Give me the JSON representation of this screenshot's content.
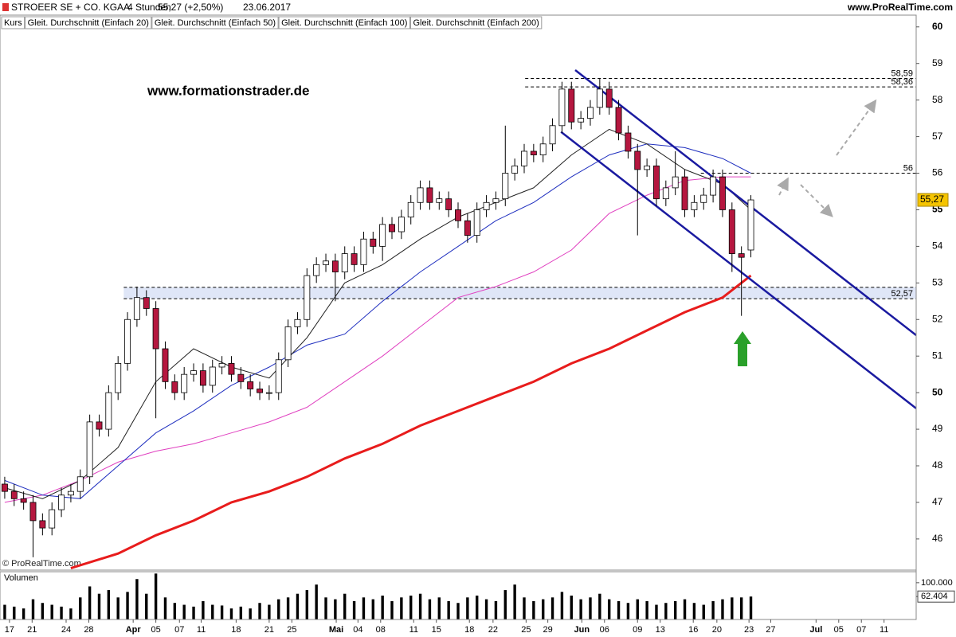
{
  "chart_data": {
    "type": "candlestick",
    "title": "STROEER SE + CO. KGAA",
    "subtitle": "4 Stunden",
    "quote": "55,27 (+2,50%)",
    "date": "23.06.2017",
    "source": "www.ProRealTime.com",
    "watermark": "www.formationstrader.de",
    "copyright": "© ProRealTime.com",
    "price_name": "Kurs",
    "up_color": "#ffffff",
    "down_color": "#b5173f",
    "open": [
      47.5,
      47.3,
      47.1,
      47.0,
      46.5,
      46.3,
      46.8,
      47.2,
      47.3,
      47.7,
      49.2,
      49.0,
      50.0,
      50.8,
      52.0,
      52.6,
      52.3,
      51.2,
      50.3,
      50.0,
      50.5,
      50.6,
      50.2,
      50.7,
      50.8,
      50.5,
      50.3,
      50.1,
      50.0,
      50.0,
      50.9,
      51.8,
      52.0,
      53.2,
      53.5,
      53.6,
      53.3,
      53.8,
      53.5,
      54.2,
      54.0,
      54.6,
      54.4,
      54.8,
      55.2,
      55.6,
      55.2,
      55.3,
      55.0,
      54.7,
      54.3,
      55.0,
      55.2,
      55.3,
      56.0,
      56.2,
      56.6,
      56.5,
      56.8,
      57.3,
      58.3,
      57.4,
      57.5,
      57.8,
      58.3,
      57.8,
      57.1,
      56.6,
      56.1,
      56.2,
      55.3,
      55.6,
      55.9,
      55.0,
      55.2,
      55.4,
      55.9,
      55.0,
      53.8,
      53.9
    ],
    "high": [
      47.7,
      47.5,
      47.3,
      47.2,
      46.7,
      47.0,
      47.4,
      47.5,
      47.9,
      49.4,
      49.4,
      50.2,
      51.0,
      52.2,
      52.9,
      52.8,
      52.5,
      51.4,
      50.5,
      50.7,
      50.8,
      50.8,
      50.9,
      51.0,
      51.0,
      50.7,
      50.5,
      50.3,
      50.2,
      51.1,
      52.0,
      52.2,
      53.4,
      53.7,
      53.8,
      53.8,
      54.0,
      54.0,
      54.4,
      54.4,
      54.8,
      54.8,
      55.0,
      55.4,
      55.8,
      55.8,
      55.5,
      55.5,
      55.2,
      54.9,
      55.2,
      55.4,
      55.5,
      57.3,
      56.4,
      56.8,
      56.8,
      57.0,
      57.5,
      58.5,
      58.5,
      57.7,
      58.0,
      58.6,
      58.5,
      58.0,
      57.3,
      56.8,
      56.4,
      56.4,
      55.8,
      56.6,
      56.1,
      55.4,
      55.6,
      56.1,
      56.1,
      55.2,
      54.0,
      55.4
    ],
    "low": [
      47.1,
      46.9,
      46.8,
      45.5,
      46.1,
      46.1,
      46.6,
      47.0,
      47.1,
      47.5,
      48.8,
      48.8,
      49.8,
      50.6,
      51.8,
      52.1,
      49.3,
      50.1,
      49.8,
      49.8,
      50.3,
      50.0,
      50.0,
      50.5,
      50.3,
      50.1,
      49.9,
      49.8,
      49.8,
      49.8,
      50.7,
      51.6,
      51.8,
      53.0,
      53.3,
      52.5,
      53.1,
      53.3,
      53.3,
      53.8,
      53.6,
      54.2,
      54.2,
      54.6,
      55.0,
      55.0,
      55.0,
      54.8,
      54.5,
      54.1,
      54.1,
      54.8,
      55.0,
      55.1,
      55.8,
      56.0,
      56.3,
      56.3,
      56.6,
      57.1,
      57.2,
      57.2,
      57.3,
      57.6,
      57.6,
      56.9,
      56.4,
      54.3,
      55.9,
      55.1,
      55.1,
      55.4,
      54.8,
      54.8,
      55.0,
      55.2,
      54.8,
      53.3,
      52.1,
      53.7
    ],
    "close": [
      47.3,
      47.1,
      47.0,
      46.5,
      46.3,
      46.8,
      47.2,
      47.3,
      47.7,
      49.2,
      49.0,
      50.0,
      50.8,
      52.0,
      52.6,
      52.3,
      51.2,
      50.3,
      50.0,
      50.5,
      50.6,
      50.2,
      50.7,
      50.8,
      50.5,
      50.3,
      50.1,
      50.0,
      50.0,
      50.9,
      51.8,
      52.0,
      53.2,
      53.5,
      53.6,
      53.3,
      53.8,
      53.5,
      54.2,
      54.0,
      54.6,
      54.4,
      54.8,
      55.2,
      55.6,
      55.2,
      55.3,
      55.0,
      54.7,
      54.3,
      55.0,
      55.2,
      55.3,
      56.0,
      56.2,
      56.6,
      56.5,
      56.8,
      57.3,
      58.3,
      57.4,
      57.5,
      57.8,
      58.3,
      57.8,
      57.1,
      56.6,
      56.1,
      56.2,
      55.3,
      55.6,
      55.9,
      55.0,
      55.2,
      55.4,
      55.9,
      55.0,
      53.8,
      53.7,
      55.27
    ],
    "last_value": {
      "value": 55.27,
      "label": "55,27"
    },
    "series": [
      {
        "name": "Gleit. Durchschnitt (Einfach 20)",
        "color": "#222222",
        "x": [
          0.5,
          4.5,
          8.5,
          12.5,
          16.5,
          20.5,
          24.5,
          28.5,
          32.5,
          36.5,
          40.5,
          44.5,
          48.5,
          52.5,
          56.5,
          60.5,
          64.5,
          68.5,
          72.5,
          76.5,
          79.5
        ],
        "values": [
          47.4,
          47.1,
          47.6,
          48.5,
          50.3,
          51.2,
          50.7,
          50.4,
          51.5,
          53.0,
          53.5,
          54.2,
          54.8,
          55.2,
          55.6,
          56.5,
          57.2,
          56.8,
          56.1,
          55.7,
          55.0
        ]
      },
      {
        "name": "Gleit. Durchschnitt (Einfach 50)",
        "color": "#1f2fbf",
        "x": [
          0.5,
          4.5,
          8.5,
          12.5,
          16.5,
          20.5,
          24.5,
          28.5,
          32.5,
          36.5,
          40.5,
          44.5,
          48.5,
          52.5,
          56.5,
          60.5,
          64.5,
          68.5,
          72.5,
          76.5,
          79.5
        ],
        "values": [
          47.6,
          47.2,
          47.1,
          48.0,
          48.9,
          49.5,
          50.2,
          50.7,
          51.3,
          51.6,
          52.5,
          53.3,
          54.0,
          54.7,
          55.2,
          55.9,
          56.5,
          56.8,
          56.7,
          56.4,
          56.0
        ]
      },
      {
        "name": "Gleit. Durchschnitt (Einfach 100)",
        "color": "#e040c0",
        "x": [
          0.5,
          4.5,
          8.5,
          12.5,
          16.5,
          20.5,
          24.5,
          28.5,
          32.5,
          36.5,
          40.5,
          44.5,
          48.5,
          52.5,
          56.5,
          60.5,
          64.5,
          68.5,
          72.5,
          76.5,
          79.5
        ],
        "values": [
          47.0,
          47.2,
          47.6,
          48.1,
          48.4,
          48.6,
          48.9,
          49.2,
          49.6,
          50.3,
          51.0,
          51.8,
          52.6,
          52.9,
          53.3,
          53.9,
          54.9,
          55.4,
          55.8,
          55.9,
          55.9
        ]
      },
      {
        "name": "Gleit. Durchschnitt (Einfach 200)",
        "color": "#e81c1c",
        "x": [
          7.5,
          12.5,
          16.5,
          20.5,
          24.5,
          28.5,
          32.5,
          36.5,
          40.5,
          44.5,
          48.5,
          52.5,
          56.5,
          60.5,
          64.5,
          68.5,
          72.5,
          76.5,
          79.5
        ],
        "values": [
          45.2,
          45.6,
          46.1,
          46.5,
          47.0,
          47.3,
          47.7,
          48.2,
          48.6,
          49.1,
          49.5,
          49.9,
          50.3,
          50.8,
          51.2,
          51.7,
          52.2,
          52.6,
          53.2
        ]
      }
    ],
    "levels": [
      {
        "value": 58.59,
        "label": "58,59",
        "x_from": 55.6
      },
      {
        "value": 58.36,
        "label": "58,36",
        "x_from": 55.6
      },
      {
        "value": 56,
        "label": "56",
        "x_from": 74.2
      },
      {
        "value": 52.57,
        "label": "52,57",
        "x_from": 13.1
      }
    ],
    "zone": {
      "from": 52.57,
      "to": 52.88,
      "x_from": 13.1,
      "color": "#dfe6f7"
    },
    "channel_color": "#1a1aa0",
    "channel": [
      {
        "x": [
          60.9,
          97
        ],
        "values": [
          58.82,
          51.57
        ]
      },
      {
        "x": [
          59.4,
          97
        ],
        "values": [
          57.13,
          49.57
        ]
      }
    ],
    "xlim": [
      0,
      97
    ],
    "xticks": [
      {
        "value": 1.0,
        "label": "17"
      },
      {
        "value": 3.4,
        "label": "21"
      },
      {
        "value": 7.0,
        "label": "24"
      },
      {
        "value": 9.4,
        "label": "28"
      },
      {
        "value": 14.1,
        "label": "Apr"
      },
      {
        "value": 16.5,
        "label": "05"
      },
      {
        "value": 19.0,
        "label": "07"
      },
      {
        "value": 21.3,
        "label": "11"
      },
      {
        "value": 25.0,
        "label": "18"
      },
      {
        "value": 28.5,
        "label": "21"
      },
      {
        "value": 30.9,
        "label": "25"
      },
      {
        "value": 35.6,
        "label": "Mai"
      },
      {
        "value": 37.9,
        "label": "04"
      },
      {
        "value": 40.3,
        "label": "08"
      },
      {
        "value": 43.8,
        "label": "11"
      },
      {
        "value": 46.2,
        "label": "15"
      },
      {
        "value": 49.7,
        "label": "18"
      },
      {
        "value": 52.2,
        "label": "22"
      },
      {
        "value": 55.7,
        "label": "25"
      },
      {
        "value": 58.0,
        "label": "29"
      },
      {
        "value": 61.6,
        "label": "Jun"
      },
      {
        "value": 64.0,
        "label": "06"
      },
      {
        "value": 67.5,
        "label": "09"
      },
      {
        "value": 69.9,
        "label": "13"
      },
      {
        "value": 73.4,
        "label": "16"
      },
      {
        "value": 75.9,
        "label": "20"
      },
      {
        "value": 79.3,
        "label": "23"
      },
      {
        "value": 81.6,
        "label": "27"
      },
      {
        "value": 86.4,
        "label": "Jul"
      },
      {
        "value": 88.8,
        "label": "05"
      },
      {
        "value": 91.2,
        "label": "07"
      },
      {
        "value": 93.6,
        "label": "11"
      }
    ],
    "ylim": [
      45.17,
      60.3
    ],
    "yticks": [
      46,
      47,
      48,
      49,
      50,
      51,
      52,
      53,
      54,
      55,
      56,
      57,
      58,
      59,
      60
    ],
    "volume": {
      "name": "Volumen",
      "color": "#000000",
      "values": [
        40000,
        35000,
        30000,
        55000,
        45000,
        40000,
        35000,
        30000,
        60000,
        90000,
        70000,
        80000,
        60000,
        75000,
        110000,
        70000,
        125000,
        60000,
        45000,
        40000,
        35000,
        50000,
        40000,
        38000,
        30000,
        35000,
        30000,
        45000,
        40000,
        55000,
        60000,
        70000,
        80000,
        95000,
        60000,
        55000,
        70000,
        50000,
        60000,
        55000,
        65000,
        50000,
        60000,
        65000,
        70000,
        55000,
        60000,
        50000,
        45000,
        60000,
        65000,
        55000,
        50000,
        80000,
        95000,
        60000,
        50000,
        55000,
        60000,
        75000,
        65000,
        55000,
        60000,
        70000,
        55000,
        50000,
        45000,
        55000,
        50000,
        40000,
        45000,
        50000,
        55000,
        45000,
        40000,
        50000,
        55000,
        60000,
        60000,
        62404
      ],
      "ylim": [
        0,
        130000
      ],
      "yticks": [
        {
          "value": 100000,
          "label": "100.000"
        },
        {
          "value": 62404,
          "label": "62.404"
        }
      ]
    }
  }
}
